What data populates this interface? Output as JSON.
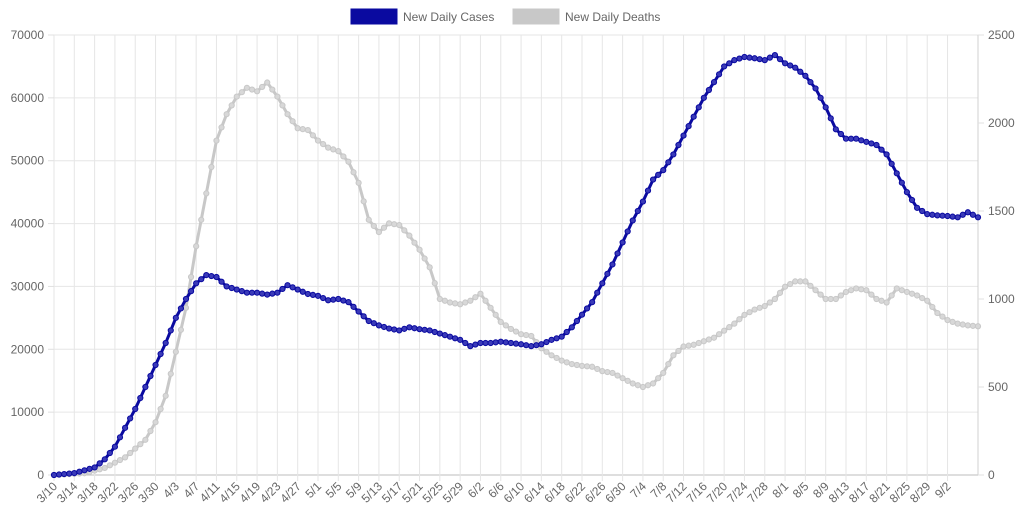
{
  "chart_data": {
    "type": "line",
    "legend_position": "top",
    "grid": true,
    "x_tick_labels": [
      "3/10",
      "3/14",
      "3/18",
      "3/22",
      "3/26",
      "3/30",
      "4/3",
      "4/7",
      "4/11",
      "4/15",
      "4/19",
      "4/23",
      "4/27",
      "5/1",
      "5/5",
      "5/9",
      "5/13",
      "5/17",
      "5/21",
      "5/25",
      "5/29",
      "6/2",
      "6/6",
      "6/10",
      "6/14",
      "6/18",
      "6/22",
      "6/26",
      "6/30",
      "7/4",
      "7/8",
      "7/12",
      "7/16",
      "7/20",
      "7/24",
      "7/28",
      "8/1",
      "8/5",
      "8/9",
      "8/13",
      "8/17",
      "8/21",
      "8/25",
      "8/29",
      "9/2"
    ],
    "y_left": {
      "min": 0,
      "max": 70000,
      "ticks": [
        "0",
        "10000",
        "20000",
        "30000",
        "40000",
        "50000",
        "60000",
        "70000"
      ]
    },
    "y_right": {
      "min": 0,
      "max": 2500,
      "ticks": [
        "0",
        "500",
        "1000",
        "1500",
        "2000",
        "2500"
      ]
    },
    "series": [
      {
        "name": "New Daily Cases",
        "axis": "left",
        "color": "#0a0aa0",
        "keyframes": [
          [
            0,
            0
          ],
          [
            4,
            300
          ],
          [
            8,
            1200
          ],
          [
            10,
            2500
          ],
          [
            12,
            4500
          ],
          [
            14,
            7500
          ],
          [
            16,
            10500
          ],
          [
            18,
            14000
          ],
          [
            20,
            17500
          ],
          [
            22,
            21000
          ],
          [
            24,
            25000
          ],
          [
            26,
            28000
          ],
          [
            28,
            30500
          ],
          [
            30,
            31800
          ],
          [
            32,
            31500
          ],
          [
            34,
            30000
          ],
          [
            36,
            29500
          ],
          [
            38,
            29000
          ],
          [
            40,
            29000
          ],
          [
            42,
            28700
          ],
          [
            44,
            29000
          ],
          [
            46,
            30200
          ],
          [
            48,
            29500
          ],
          [
            50,
            28800
          ],
          [
            52,
            28500
          ],
          [
            54,
            27800
          ],
          [
            56,
            28000
          ],
          [
            58,
            27500
          ],
          [
            60,
            26000
          ],
          [
            62,
            24500
          ],
          [
            64,
            23800
          ],
          [
            66,
            23300
          ],
          [
            68,
            23000
          ],
          [
            70,
            23500
          ],
          [
            72,
            23200
          ],
          [
            74,
            23000
          ],
          [
            76,
            22500
          ],
          [
            78,
            22000
          ],
          [
            80,
            21500
          ],
          [
            82,
            20500
          ],
          [
            84,
            21000
          ],
          [
            86,
            21000
          ],
          [
            88,
            21200
          ],
          [
            90,
            21000
          ],
          [
            92,
            20800
          ],
          [
            94,
            20500
          ],
          [
            96,
            20800
          ],
          [
            98,
            21500
          ],
          [
            100,
            22000
          ],
          [
            102,
            23500
          ],
          [
            104,
            25500
          ],
          [
            106,
            27500
          ],
          [
            108,
            30500
          ],
          [
            110,
            33500
          ],
          [
            112,
            37000
          ],
          [
            114,
            40500
          ],
          [
            116,
            43500
          ],
          [
            118,
            47000
          ],
          [
            120,
            48500
          ],
          [
            122,
            51000
          ],
          [
            124,
            54000
          ],
          [
            126,
            57000
          ],
          [
            128,
            60000
          ],
          [
            130,
            62500
          ],
          [
            132,
            65000
          ],
          [
            134,
            66000
          ],
          [
            136,
            66500
          ],
          [
            138,
            66300
          ],
          [
            140,
            66000
          ],
          [
            142,
            66800
          ],
          [
            144,
            65500
          ],
          [
            146,
            64800
          ],
          [
            148,
            63500
          ],
          [
            150,
            61500
          ],
          [
            152,
            58500
          ],
          [
            154,
            55000
          ],
          [
            156,
            53500
          ],
          [
            158,
            53500
          ],
          [
            160,
            53000
          ],
          [
            162,
            52500
          ],
          [
            164,
            51000
          ],
          [
            166,
            48000
          ],
          [
            168,
            45000
          ],
          [
            170,
            42500
          ],
          [
            172,
            41500
          ],
          [
            174,
            41300
          ],
          [
            176,
            41200
          ],
          [
            178,
            41000
          ],
          [
            180,
            41800
          ],
          [
            182,
            41000
          ]
        ]
      },
      {
        "name": "New Daily Deaths",
        "axis": "right",
        "color": "#c8c8c8",
        "keyframes": [
          [
            0,
            0
          ],
          [
            6,
            10
          ],
          [
            10,
            40
          ],
          [
            14,
            100
          ],
          [
            18,
            200
          ],
          [
            20,
            300
          ],
          [
            22,
            450
          ],
          [
            24,
            700
          ],
          [
            26,
            950
          ],
          [
            28,
            1300
          ],
          [
            30,
            1600
          ],
          [
            32,
            1900
          ],
          [
            34,
            2050
          ],
          [
            36,
            2150
          ],
          [
            38,
            2200
          ],
          [
            40,
            2180
          ],
          [
            42,
            2230
          ],
          [
            44,
            2150
          ],
          [
            46,
            2050
          ],
          [
            48,
            1970
          ],
          [
            50,
            1960
          ],
          [
            52,
            1900
          ],
          [
            54,
            1860
          ],
          [
            56,
            1840
          ],
          [
            58,
            1780
          ],
          [
            60,
            1660
          ],
          [
            62,
            1450
          ],
          [
            64,
            1380
          ],
          [
            66,
            1430
          ],
          [
            68,
            1420
          ],
          [
            70,
            1360
          ],
          [
            72,
            1280
          ],
          [
            74,
            1180
          ],
          [
            76,
            1000
          ],
          [
            78,
            980
          ],
          [
            80,
            970
          ],
          [
            82,
            990
          ],
          [
            84,
            1030
          ],
          [
            86,
            950
          ],
          [
            88,
            870
          ],
          [
            90,
            830
          ],
          [
            92,
            800
          ],
          [
            94,
            790
          ],
          [
            96,
            720
          ],
          [
            98,
            680
          ],
          [
            100,
            650
          ],
          [
            102,
            630
          ],
          [
            104,
            620
          ],
          [
            106,
            615
          ],
          [
            108,
            590
          ],
          [
            110,
            580
          ],
          [
            112,
            550
          ],
          [
            114,
            520
          ],
          [
            116,
            500
          ],
          [
            118,
            520
          ],
          [
            120,
            580
          ],
          [
            122,
            680
          ],
          [
            124,
            730
          ],
          [
            126,
            740
          ],
          [
            128,
            760
          ],
          [
            130,
            780
          ],
          [
            132,
            820
          ],
          [
            134,
            860
          ],
          [
            136,
            910
          ],
          [
            138,
            940
          ],
          [
            140,
            960
          ],
          [
            142,
            1000
          ],
          [
            144,
            1070
          ],
          [
            146,
            1100
          ],
          [
            148,
            1100
          ],
          [
            150,
            1050
          ],
          [
            152,
            1000
          ],
          [
            154,
            1000
          ],
          [
            156,
            1040
          ],
          [
            158,
            1060
          ],
          [
            160,
            1050
          ],
          [
            162,
            1000
          ],
          [
            164,
            980
          ],
          [
            166,
            1060
          ],
          [
            168,
            1040
          ],
          [
            170,
            1020
          ],
          [
            172,
            990
          ],
          [
            174,
            920
          ],
          [
            176,
            880
          ],
          [
            178,
            860
          ],
          [
            180,
            850
          ],
          [
            182,
            845
          ]
        ]
      }
    ]
  }
}
